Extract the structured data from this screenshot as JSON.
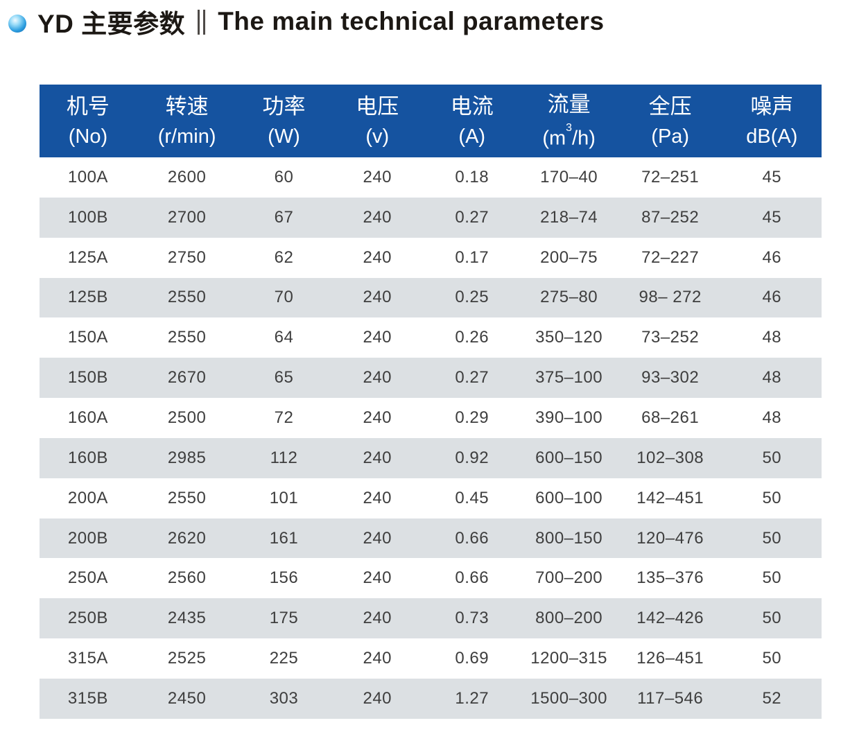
{
  "header": {
    "bullet_icon": "blue-sphere-bullet",
    "title_zh": "YD 主要参数",
    "separator_icon": "double-vertical-bar",
    "separator": "‖",
    "title_en": "The main technical parameters"
  },
  "colors": {
    "header_bg": "#1553a0",
    "row_alt_bg": "#dce0e3",
    "header_text": "#ffffff",
    "cell_text": "#3e3e3e",
    "accent_blue": "#1553a0"
  },
  "table": {
    "columns": [
      {
        "zh": "机号",
        "unit": "(No)"
      },
      {
        "zh": "转速",
        "unit": "(r/min)"
      },
      {
        "zh": "功率",
        "unit": "(W)"
      },
      {
        "zh": "电压",
        "unit": "(v)"
      },
      {
        "zh": "电流",
        "unit": "(A)"
      },
      {
        "zh": "流量",
        "unit_pre": "(m",
        "unit_sup": "3",
        "unit_post": "/h)"
      },
      {
        "zh": "全压",
        "unit": "(Pa)"
      },
      {
        "zh": "噪声",
        "unit": "dB(A)"
      }
    ],
    "rows": [
      [
        "100A",
        "2600",
        "60",
        "240",
        "0.18",
        "170–40",
        "72–251",
        "45"
      ],
      [
        "100B",
        "2700",
        "67",
        "240",
        "0.27",
        "218–74",
        "87–252",
        "45"
      ],
      [
        "125A",
        "2750",
        "62",
        "240",
        "0.17",
        "200–75",
        "72–227",
        "46"
      ],
      [
        "125B",
        "2550",
        "70",
        "240",
        "0.25",
        "275–80",
        "98– 272",
        "46"
      ],
      [
        "150A",
        "2550",
        "64",
        "240",
        "0.26",
        "350–120",
        "73–252",
        "48"
      ],
      [
        "150B",
        "2670",
        "65",
        "240",
        "0.27",
        "375–100",
        "93–302",
        "48"
      ],
      [
        "160A",
        "2500",
        "72",
        "240",
        "0.29",
        "390–100",
        "68–261",
        "48"
      ],
      [
        "160B",
        "2985",
        "112",
        "240",
        "0.92",
        "600–150",
        "102–308",
        "50"
      ],
      [
        "200A",
        "2550",
        "101",
        "240",
        "0.45",
        "600–100",
        "142–451",
        "50"
      ],
      [
        "200B",
        "2620",
        "161",
        "240",
        "0.66",
        "800–150",
        "120–476",
        "50"
      ],
      [
        "250A",
        "2560",
        "156",
        "240",
        "0.66",
        "700–200",
        "135–376",
        "50"
      ],
      [
        "250B",
        "2435",
        "175",
        "240",
        "0.73",
        "800–200",
        "142–426",
        "50"
      ],
      [
        "315A",
        "2525",
        "225",
        "240",
        "0.69",
        "1200–315",
        "126–451",
        "50"
      ],
      [
        "315B",
        "2450",
        "303",
        "240",
        "1.27",
        "1500–300",
        "117–546",
        "52"
      ]
    ]
  }
}
